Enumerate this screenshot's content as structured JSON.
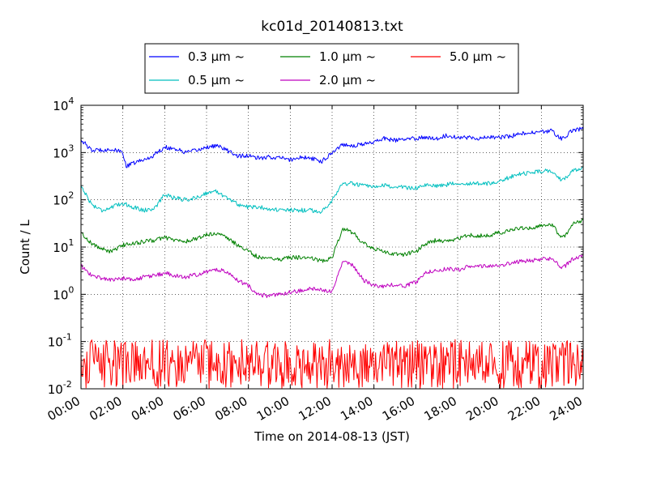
{
  "chart_data": {
    "type": "line",
    "title": "kc01d_20140813.txt",
    "xlabel": "Time on 2014-08-13 (JST)",
    "ylabel": "Count / L",
    "y_scale": "log",
    "ylim": [
      0.01,
      10000
    ],
    "xlim": [
      "2014-08-13 00:00",
      "2014-08-14 00:00"
    ],
    "x_tick_labels": [
      "00:00",
      "02:00",
      "04:00",
      "06:00",
      "08:00",
      "10:00",
      "12:00",
      "14:00",
      "16:00",
      "18:00",
      "20:00",
      "22:00",
      "24:00"
    ],
    "y_tick_labels": [
      {
        "base": "10",
        "exp": "-2"
      },
      {
        "base": "10",
        "exp": "-1"
      },
      {
        "base": "10",
        "exp": "0"
      },
      {
        "base": "10",
        "exp": "1"
      },
      {
        "base": "10",
        "exp": "2"
      },
      {
        "base": "10",
        "exp": "3"
      },
      {
        "base": "10",
        "exp": "4"
      }
    ],
    "grid": true,
    "legend_placement": "top-center (outside plot)",
    "series": [
      {
        "name": "0.3 μm ~",
        "color": "#0000ff",
        "x": [
          "00:00",
          "00:30",
          "01:00",
          "01:30",
          "02:00",
          "02:10",
          "02:30",
          "03:00",
          "03:20",
          "04:00",
          "04:30",
          "05:00",
          "05:30",
          "06:00",
          "06:30",
          "07:00",
          "07:30",
          "08:00",
          "08:30",
          "09:00",
          "09:30",
          "10:00",
          "10:30",
          "11:00",
          "11:30",
          "12:00",
          "12:30",
          "13:00",
          "13:30",
          "14:00",
          "14:30",
          "15:00",
          "15:30",
          "16:00",
          "16:30",
          "17:00",
          "17:30",
          "18:00",
          "18:30",
          "19:00",
          "19:30",
          "20:00",
          "20:30",
          "21:00",
          "21:30",
          "22:00",
          "22:30",
          "23:00",
          "23:30",
          "24:00"
        ],
        "y": [
          1900,
          1100,
          1150,
          1150,
          1000,
          500,
          600,
          700,
          800,
          1300,
          1200,
          1000,
          1100,
          1300,
          1400,
          1100,
          850,
          850,
          750,
          800,
          780,
          700,
          800,
          750,
          650,
          1000,
          1500,
          1400,
          1500,
          1700,
          2000,
          1800,
          1900,
          2000,
          2100,
          2000,
          2300,
          2100,
          2100,
          2000,
          2100,
          2100,
          2200,
          2500,
          2600,
          2700,
          2900,
          1900,
          3000,
          3200
        ]
      },
      {
        "name": "0.5 μm ~",
        "color": "#00bfbf",
        "x": [
          "00:00",
          "00:30",
          "01:00",
          "01:30",
          "02:00",
          "02:30",
          "03:00",
          "03:30",
          "04:00",
          "04:30",
          "05:00",
          "05:30",
          "06:00",
          "06:30",
          "07:00",
          "07:30",
          "08:00",
          "08:30",
          "09:00",
          "09:30",
          "10:00",
          "10:30",
          "11:00",
          "11:30",
          "12:00",
          "12:30",
          "13:00",
          "13:30",
          "14:00",
          "14:30",
          "15:00",
          "15:30",
          "16:00",
          "16:30",
          "17:00",
          "17:30",
          "18:00",
          "18:30",
          "19:00",
          "19:30",
          "20:00",
          "20:30",
          "21:00",
          "21:30",
          "22:00",
          "22:30",
          "23:00",
          "23:30",
          "24:00"
        ],
        "y": [
          200,
          80,
          60,
          70,
          85,
          70,
          60,
          65,
          130,
          110,
          100,
          110,
          140,
          150,
          110,
          80,
          70,
          70,
          65,
          60,
          60,
          60,
          60,
          55,
          100,
          220,
          220,
          200,
          180,
          200,
          190,
          180,
          180,
          200,
          200,
          210,
          230,
          220,
          220,
          220,
          250,
          300,
          350,
          380,
          400,
          420,
          250,
          420,
          470
        ]
      },
      {
        "name": "1.0 μm ~",
        "color": "#008000",
        "x": [
          "00:00",
          "00:30",
          "01:00",
          "01:30",
          "02:00",
          "02:30",
          "03:00",
          "03:30",
          "04:00",
          "04:30",
          "05:00",
          "05:30",
          "06:00",
          "06:30",
          "07:00",
          "07:30",
          "08:00",
          "08:30",
          "09:00",
          "09:30",
          "10:00",
          "10:30",
          "11:00",
          "11:30",
          "12:00",
          "12:30",
          "13:00",
          "13:30",
          "14:00",
          "14:30",
          "15:00",
          "15:30",
          "16:00",
          "16:30",
          "17:00",
          "17:30",
          "18:00",
          "18:30",
          "19:00",
          "19:30",
          "20:00",
          "20:30",
          "21:00",
          "21:30",
          "22:00",
          "22:30",
          "23:00",
          "23:30",
          "24:00"
        ],
        "y": [
          20,
          12,
          9,
          8,
          11,
          12,
          13,
          14,
          16,
          14,
          13,
          15,
          18,
          20,
          15,
          11,
          8,
          6,
          6,
          5.5,
          6,
          6,
          6,
          5,
          6,
          25,
          20,
          12,
          9,
          8,
          7,
          7,
          8,
          12,
          14,
          13,
          15,
          18,
          17,
          18,
          20,
          22,
          25,
          26,
          28,
          30,
          15,
          30,
          38
        ]
      },
      {
        "name": "2.0 μm ~",
        "color": "#bf00bf",
        "x": [
          "00:00",
          "00:30",
          "01:00",
          "01:30",
          "02:00",
          "02:30",
          "03:00",
          "03:30",
          "04:00",
          "04:30",
          "05:00",
          "05:30",
          "06:00",
          "06:30",
          "07:00",
          "07:30",
          "08:00",
          "08:30",
          "09:00",
          "09:30",
          "10:00",
          "10:30",
          "11:00",
          "11:30",
          "12:00",
          "12:30",
          "13:00",
          "13:30",
          "14:00",
          "14:30",
          "15:00",
          "15:30",
          "16:00",
          "16:30",
          "17:00",
          "17:30",
          "18:00",
          "18:30",
          "19:00",
          "19:30",
          "20:00",
          "20:30",
          "21:00",
          "21:30",
          "22:00",
          "22:30",
          "23:00",
          "23:30",
          "24:00"
        ],
        "y": [
          4,
          2.5,
          2.2,
          2,
          2.2,
          2,
          2.3,
          2.5,
          2.8,
          2.5,
          2.3,
          2.6,
          3,
          3.3,
          3,
          2,
          1.5,
          1,
          0.9,
          1,
          1.1,
          1.2,
          1.3,
          1.2,
          1.2,
          5,
          4,
          2,
          1.5,
          1.5,
          1.6,
          1.5,
          1.8,
          3,
          3.2,
          3.5,
          3.3,
          3.8,
          4,
          3.8,
          4,
          4.5,
          5,
          5.2,
          5.5,
          5.8,
          3.5,
          5.5,
          6.5
        ]
      },
      {
        "name": "5.0 μm ~",
        "color": "#ff0000",
        "x": [
          "00:00",
          "02:00",
          "04:00",
          "06:00",
          "08:00",
          "10:00",
          "12:00",
          "14:00",
          "16:00",
          "18:00",
          "20:00",
          "22:00",
          "24:00"
        ],
        "y": [
          0.03,
          0.03,
          0.035,
          0.04,
          0.03,
          0.028,
          0.04,
          0.045,
          0.04,
          0.035,
          0.03,
          0.03,
          0.03
        ],
        "y_range_observed": [
          0.01,
          0.13
        ]
      }
    ]
  }
}
